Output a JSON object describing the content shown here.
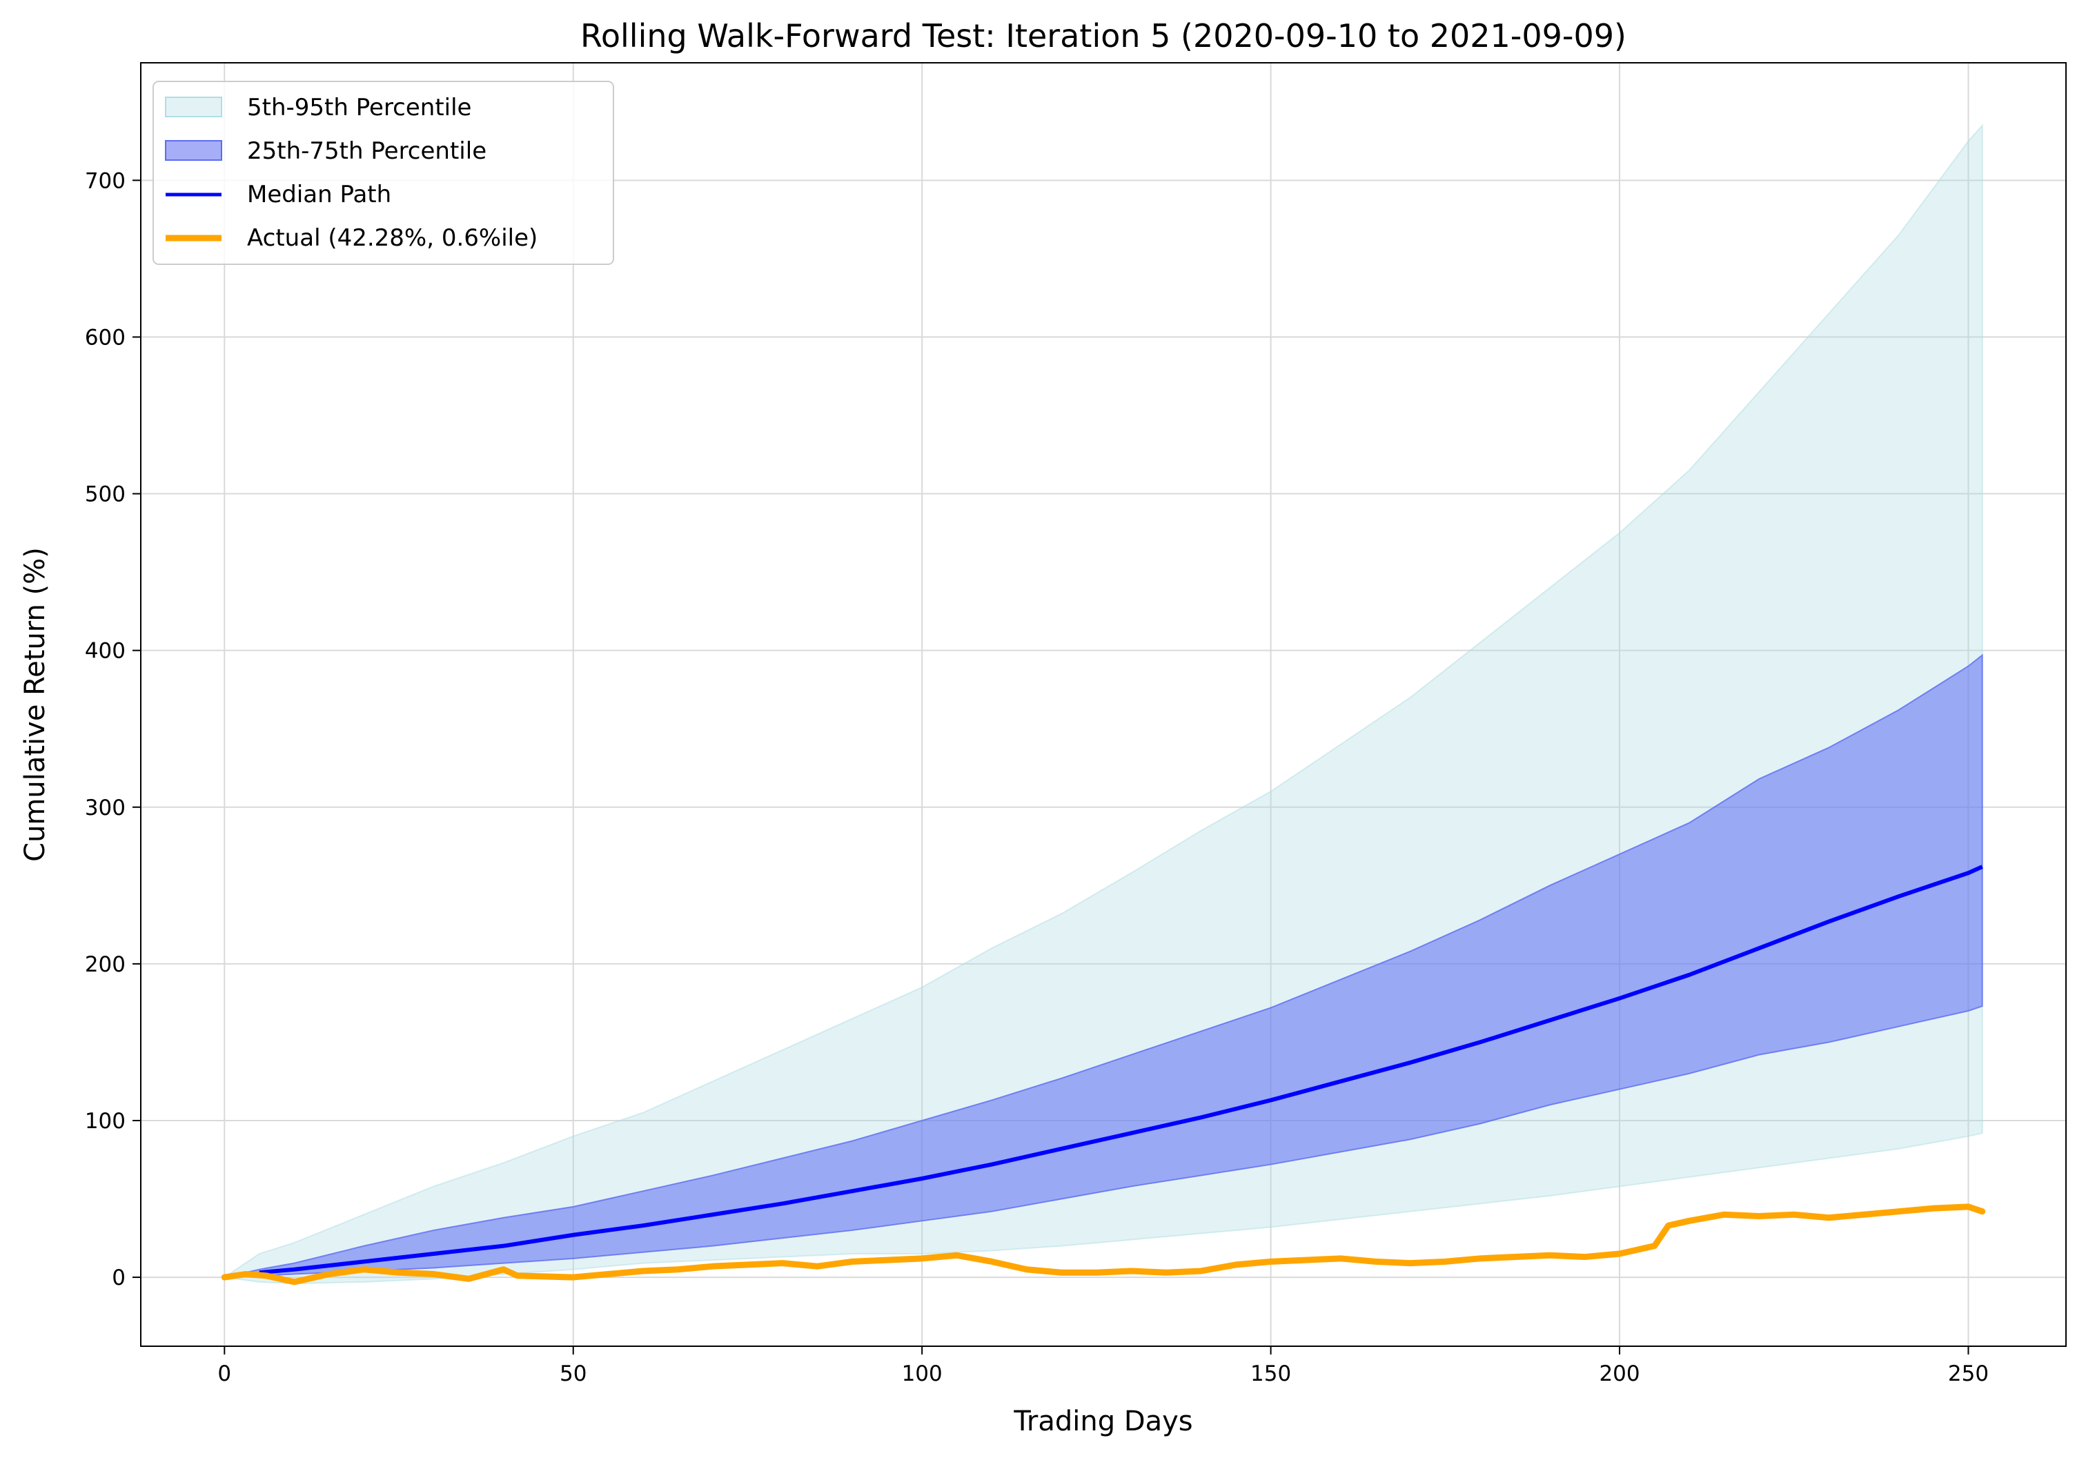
{
  "chart_data": {
    "type": "area",
    "title": "Rolling Walk-Forward Test: Iteration 5 (2020-09-10 to 2021-09-09)",
    "xlabel": "Trading Days",
    "ylabel": "Cumulative Return (%)",
    "xlim": [
      -12,
      264
    ],
    "ylim": [
      -44,
      775
    ],
    "xticks": [
      0,
      50,
      100,
      150,
      200,
      250
    ],
    "yticks": [
      0,
      100,
      200,
      300,
      400,
      500,
      600,
      700
    ],
    "grid": true,
    "legend_position": "top-left",
    "colors": {
      "band_outer": "#b0dde3",
      "band_inner": "#5c6cf2",
      "median": "#0000ff",
      "actual": "#ffa500",
      "grid": "#d9d9d9"
    },
    "legend": [
      {
        "key": "band_95",
        "label": "5th-95th Percentile"
      },
      {
        "key": "band_75",
        "label": "25th-75th Percentile"
      },
      {
        "key": "median",
        "label": "Median Path"
      },
      {
        "key": "actual",
        "label": "Actual (42.28%, 0.6%ile)"
      }
    ],
    "x": [
      0,
      5,
      10,
      20,
      30,
      40,
      50,
      60,
      70,
      80,
      90,
      100,
      110,
      120,
      130,
      140,
      150,
      160,
      170,
      180,
      190,
      200,
      210,
      220,
      230,
      240,
      250,
      252
    ],
    "series": [
      {
        "name": "5th-95th Percentile",
        "kind": "band",
        "lower": [
          0,
          -3,
          -4,
          -3,
          -1,
          2,
          5,
          9,
          11,
          13,
          15,
          15,
          17,
          20,
          24,
          28,
          32,
          37,
          42,
          47,
          52,
          58,
          64,
          70,
          76,
          82,
          90,
          92
        ],
        "upper": [
          0,
          15,
          22,
          40,
          58,
          73,
          90,
          105,
          125,
          145,
          165,
          185,
          210,
          232,
          258,
          285,
          310,
          340,
          370,
          405,
          440,
          475,
          515,
          565,
          615,
          665,
          725,
          735
        ]
      },
      {
        "name": "25th-75th Percentile",
        "kind": "band",
        "lower": [
          0,
          1,
          2,
          4,
          6,
          9,
          12,
          16,
          20,
          25,
          30,
          36,
          42,
          50,
          58,
          65,
          72,
          80,
          88,
          98,
          110,
          120,
          130,
          142,
          150,
          160,
          170,
          173
        ],
        "upper": [
          0,
          5,
          9,
          20,
          30,
          38,
          45,
          55,
          65,
          76,
          87,
          100,
          113,
          127,
          142,
          157,
          172,
          190,
          208,
          228,
          250,
          270,
          290,
          318,
          338,
          362,
          390,
          397
        ]
      },
      {
        "name": "Median Path",
        "kind": "line",
        "values": [
          0,
          3,
          5,
          10,
          15,
          20,
          27,
          33,
          40,
          47,
          55,
          63,
          72,
          82,
          92,
          102,
          113,
          125,
          137,
          150,
          164,
          178,
          193,
          210,
          227,
          243,
          258,
          262
        ]
      },
      {
        "name": "Actual (42.28%, 0.6%ile)",
        "kind": "line",
        "x": [
          0,
          3,
          6,
          9,
          10,
          15,
          20,
          25,
          30,
          35,
          40,
          42,
          50,
          55,
          60,
          65,
          70,
          80,
          85,
          90,
          95,
          100,
          105,
          110,
          115,
          120,
          125,
          130,
          135,
          140,
          145,
          150,
          155,
          160,
          165,
          170,
          175,
          180,
          190,
          195,
          200,
          205,
          207,
          210,
          215,
          220,
          225,
          230,
          235,
          240,
          245,
          250,
          252
        ],
        "values": [
          0,
          2,
          1,
          -2,
          -3,
          2,
          5,
          3,
          2,
          -1,
          5,
          1,
          0,
          2,
          4,
          5,
          7,
          9,
          7,
          10,
          11,
          12,
          14,
          10,
          5,
          3,
          3,
          4,
          3,
          4,
          8,
          10,
          11,
          12,
          10,
          9,
          10,
          12,
          14,
          13,
          15,
          20,
          33,
          36,
          40,
          39,
          40,
          38,
          40,
          42,
          44,
          45,
          42
        ]
      }
    ]
  }
}
